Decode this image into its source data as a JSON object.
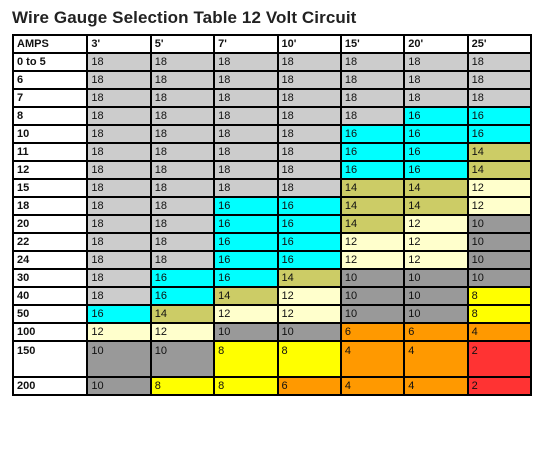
{
  "title": "Wire Gauge Selection Table 12 Volt Circuit",
  "table": {
    "corner_label": "AMPS",
    "columns": [
      "3'",
      "5'",
      "7'",
      "10'",
      "15'",
      "20'",
      "25'"
    ],
    "rows": [
      {
        "amps": "0 to 5",
        "values": [
          "18",
          "18",
          "18",
          "18",
          "18",
          "18",
          "18"
        ]
      },
      {
        "amps": "6",
        "values": [
          "18",
          "18",
          "18",
          "18",
          "18",
          "18",
          "18"
        ]
      },
      {
        "amps": "7",
        "values": [
          "18",
          "18",
          "18",
          "18",
          "18",
          "18",
          "18"
        ]
      },
      {
        "amps": "8",
        "values": [
          "18",
          "18",
          "18",
          "18",
          "18",
          "16",
          "16"
        ]
      },
      {
        "amps": "10",
        "values": [
          "18",
          "18",
          "18",
          "18",
          "16",
          "16",
          "16"
        ]
      },
      {
        "amps": "11",
        "values": [
          "18",
          "18",
          "18",
          "18",
          "16",
          "16",
          "14"
        ]
      },
      {
        "amps": "12",
        "values": [
          "18",
          "18",
          "18",
          "18",
          "16",
          "16",
          "14"
        ]
      },
      {
        "amps": "15",
        "values": [
          "18",
          "18",
          "18",
          "18",
          "14",
          "14",
          "12"
        ]
      },
      {
        "amps": "18",
        "values": [
          "18",
          "18",
          "16",
          "16",
          "14",
          "14",
          "12"
        ]
      },
      {
        "amps": "20",
        "values": [
          "18",
          "18",
          "16",
          "16",
          "14",
          "12",
          "10"
        ]
      },
      {
        "amps": "22",
        "values": [
          "18",
          "18",
          "16",
          "16",
          "12",
          "12",
          "10"
        ]
      },
      {
        "amps": "24",
        "values": [
          "18",
          "18",
          "16",
          "16",
          "12",
          "12",
          "10"
        ]
      },
      {
        "amps": "30",
        "values": [
          "18",
          "16",
          "16",
          "14",
          "10",
          "10",
          "10"
        ]
      },
      {
        "amps": "40",
        "values": [
          "18",
          "16",
          "14",
          "12",
          "10",
          "10",
          "8"
        ]
      },
      {
        "amps": "50",
        "values": [
          "16",
          "14",
          "12",
          "12",
          "10",
          "10",
          "8"
        ]
      },
      {
        "amps": "100",
        "values": [
          "12",
          "12",
          "10",
          "10",
          "6",
          "6",
          "4"
        ]
      },
      {
        "amps": "150",
        "values": [
          "10",
          "10",
          "8",
          "8",
          "4",
          "4",
          "2"
        ],
        "tall": true
      },
      {
        "amps": "200",
        "values": [
          "10",
          "8",
          "8",
          "6",
          "4",
          "4",
          "2"
        ]
      }
    ]
  },
  "gauge_colors": {
    "18": "#cccccc",
    "16": "#00ffff",
    "14": "#cccc66",
    "12": "#ffffcc",
    "10": "#999999",
    "8": "#ffff00",
    "6": "#ff9900",
    "4": "#ff9900",
    "2": "#ff3333"
  }
}
